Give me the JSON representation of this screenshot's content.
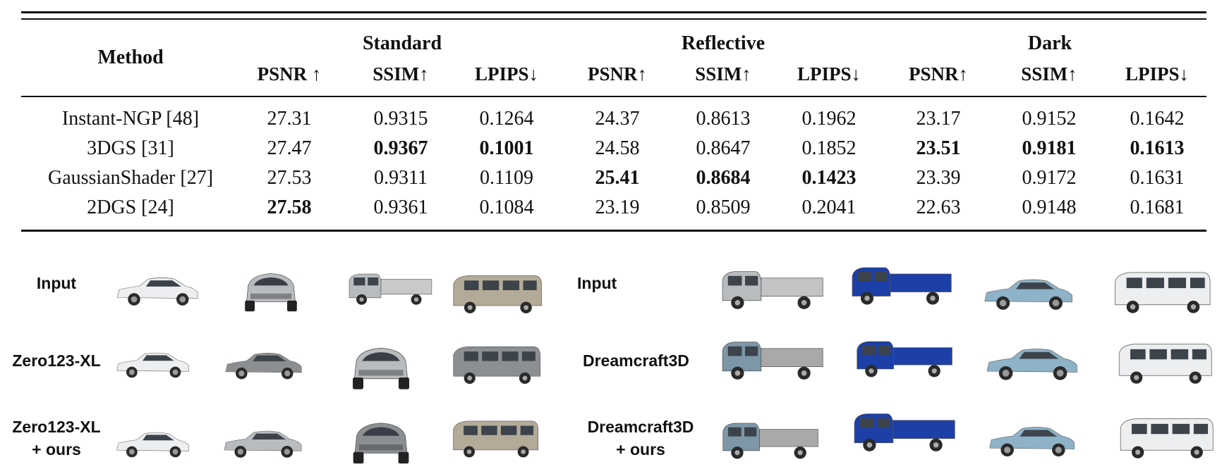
{
  "table": {
    "method_header": "Method",
    "groups": [
      "Standard",
      "Reflective",
      "Dark"
    ],
    "subheaders": [
      "PSNR ↑",
      "SSIM↑",
      "LPIPS↓",
      "PSNR↑",
      "SSIM↑",
      "LPIPS↓",
      "PSNR↑",
      "SSIM↑",
      "LPIPS↓"
    ],
    "rows": [
      {
        "method": "Instant-NGP [48]",
        "values": [
          "27.31",
          "0.9315",
          "0.1264",
          "24.37",
          "0.8613",
          "0.1962",
          "23.17",
          "0.9152",
          "0.1642"
        ],
        "bold": []
      },
      {
        "method": "3DGS [31]",
        "values": [
          "27.47",
          "0.9367",
          "0.1001",
          "24.58",
          "0.8647",
          "0.1852",
          "23.51",
          "0.9181",
          "0.1613"
        ],
        "bold": [
          1,
          2,
          6,
          7,
          8
        ]
      },
      {
        "method": "GaussianShader [27]",
        "values": [
          "27.53",
          "0.9311",
          "0.1109",
          "25.41",
          "0.8684",
          "0.1423",
          "23.39",
          "0.9172",
          "0.1631"
        ],
        "bold": [
          3,
          4,
          5
        ]
      },
      {
        "method": "2DGS [24]",
        "values": [
          "27.58",
          "0.9361",
          "0.1084",
          "23.19",
          "0.8509",
          "0.2041",
          "22.63",
          "0.9148",
          "0.1681"
        ],
        "bold": [
          0
        ]
      }
    ]
  },
  "figure": {
    "left_labels": [
      "Input",
      "Zero123-XL",
      "Zero123-XL\n+ ours"
    ],
    "right_labels": [
      "Input",
      "Dreamcraft3D",
      "Dreamcraft3D\n+ ours"
    ],
    "car_colors": {
      "white": "#eceef0",
      "silver": "#b9bcbf",
      "grey": "#8c8f92",
      "beige": "#b3aa98",
      "blue_truck": "#1c3fa8",
      "light_blue": "#8eb2c8",
      "rusty_blue": "#7d97a8"
    }
  }
}
